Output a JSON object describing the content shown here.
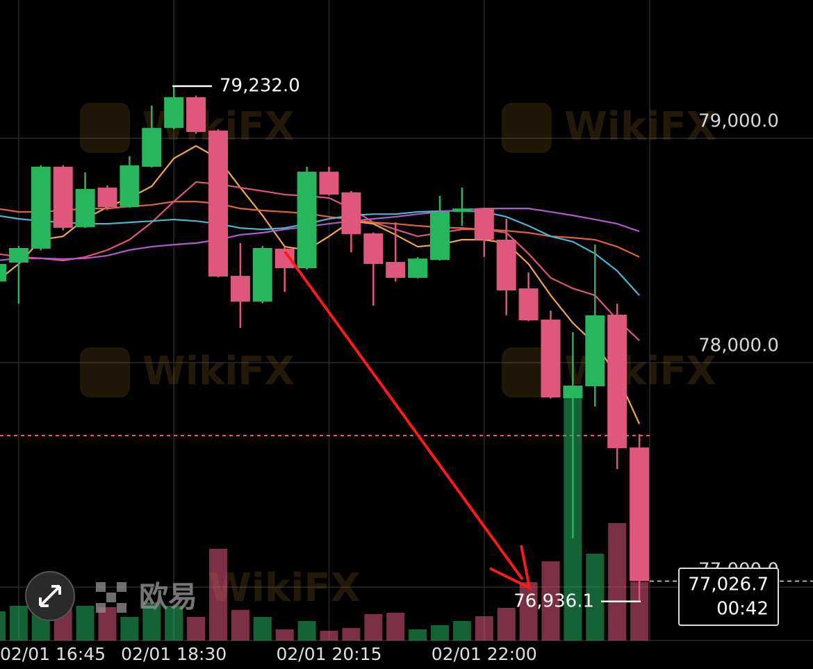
{
  "chart_data": {
    "type": "candlestick",
    "categories": [
      null,
      "02/01 16:45",
      null,
      null,
      null,
      null,
      null,
      null,
      "02/01 18:30",
      null,
      null,
      null,
      null,
      null,
      null,
      "02/01 20:15",
      null,
      null,
      null,
      null,
      null,
      null,
      "02/01 22:00",
      null,
      null,
      null,
      null,
      null,
      null,
      null
    ],
    "ohlc": [
      [
        78362,
        78450,
        78340,
        78440
      ],
      [
        78446,
        78520,
        78263,
        78511
      ],
      [
        78508,
        78880,
        78500,
        78873
      ],
      [
        78873,
        78880,
        78590,
        78601
      ],
      [
        78604,
        78848,
        78600,
        78774
      ],
      [
        78780,
        78790,
        78680,
        78693
      ],
      [
        78693,
        78920,
        78690,
        78879
      ],
      [
        78873,
        79146,
        78870,
        79046
      ],
      [
        79046,
        79232,
        79040,
        79183
      ],
      [
        79183,
        79190,
        79020,
        79028
      ],
      [
        79034,
        79040,
        78380,
        78384
      ],
      [
        78387,
        78533,
        78155,
        78272
      ],
      [
        78272,
        78520,
        78265,
        78511
      ],
      [
        78508,
        78515,
        78316,
        78421
      ],
      [
        78421,
        78873,
        78415,
        78851
      ],
      [
        78851,
        78873,
        78745,
        78749
      ],
      [
        78759,
        78765,
        78492,
        78573
      ],
      [
        78576,
        78580,
        78254,
        78440
      ],
      [
        78449,
        78625,
        78362,
        78378
      ],
      [
        78378,
        78470,
        78375,
        78464
      ],
      [
        78458,
        78743,
        78455,
        78672
      ],
      [
        78672,
        78780,
        78610,
        78687
      ],
      [
        78687,
        78690,
        78471,
        78548
      ],
      [
        78548,
        78641,
        78211,
        78322
      ],
      [
        78331,
        78402,
        78185,
        78189
      ],
      [
        78192,
        78232,
        77840,
        77845
      ],
      [
        77842,
        78136,
        77217,
        77898
      ],
      [
        77895,
        78526,
        77805,
        78211
      ],
      [
        78214,
        78263,
        77526,
        77619
      ],
      [
        77622,
        77681,
        76936.1,
        77026.7
      ]
    ],
    "volume": [
      42,
      50,
      40,
      55,
      50,
      48,
      34,
      55,
      50,
      34,
      132,
      44,
      34,
      16,
      28,
      14,
      18,
      38,
      40,
      16,
      22,
      28,
      35,
      47,
      84,
      114,
      350,
      125,
      169,
      84
    ],
    "ma_lines": [
      {
        "color": "#f3a84a",
        "values": [
          78362,
          78440,
          78548,
          78563,
          78641,
          78693,
          78734,
          78786,
          78910,
          78966,
          78910,
          78780,
          78656,
          78517,
          78502,
          78563,
          78631,
          78619,
          78570,
          78517,
          78526,
          78548,
          78548,
          78533,
          78440,
          78300,
          78177,
          78083,
          77944,
          77727
        ]
      },
      {
        "color": "#e0567c",
        "values": [
          78486,
          78471,
          78465,
          78455,
          78471,
          78502,
          78548,
          78625,
          78718,
          78805,
          78796,
          78780,
          78765,
          78749,
          78743,
          78734,
          78687,
          78625,
          78594,
          78563,
          78579,
          78594,
          78594,
          78579,
          78486,
          78378,
          78331,
          78300,
          78192,
          78099
        ]
      },
      {
        "color": "#e0643a",
        "values": [
          78687,
          78672,
          78672,
          78678,
          78687,
          78687,
          78696,
          78703,
          78718,
          78718,
          78709,
          78687,
          78678,
          78672,
          78665,
          78650,
          78638,
          78625,
          78619,
          78610,
          78603,
          78600,
          78594,
          78588,
          78579,
          78563,
          78557,
          78548,
          78517,
          78471
        ]
      },
      {
        "color": "#4ab6d6",
        "values": [
          78656,
          78641,
          78631,
          78625,
          78619,
          78619,
          78625,
          78631,
          78638,
          78631,
          78619,
          78600,
          78594,
          78600,
          78619,
          78641,
          78656,
          78662,
          78662,
          78672,
          78675,
          78678,
          78672,
          78650,
          78610,
          78563,
          78539,
          78486,
          78409,
          78300
        ]
      },
      {
        "color": "#b35ad0",
        "values": [
          78455,
          78465,
          78465,
          78462,
          78465,
          78477,
          78502,
          78517,
          78526,
          78533,
          78548,
          78570,
          78579,
          78594,
          78606,
          78619,
          78631,
          78641,
          78650,
          78662,
          78672,
          78681,
          78687,
          78687,
          78687,
          78672,
          78656,
          78638,
          78619,
          78585
        ]
      }
    ],
    "up_color": "#27b55e",
    "down_color": "#e0577d",
    "ylim": [
      76762,
      79616
    ],
    "yticks": [
      {
        "value": 79000,
        "label": "79,000.0"
      },
      {
        "value": 78000,
        "label": "78,000.0"
      },
      {
        "value": 77000,
        "label": "77,000.0"
      }
    ],
    "grid": true,
    "high_label": {
      "value": 79232,
      "label": "79,232.0"
    },
    "low_label": {
      "value": 76936.1,
      "label": "76,936.1"
    },
    "current_price": {
      "value": 77026.7,
      "label": "77,026.7"
    },
    "countdown": "00:42",
    "reference_line": 77675,
    "watermark": "WikiFX",
    "logo_text": "欧易"
  }
}
